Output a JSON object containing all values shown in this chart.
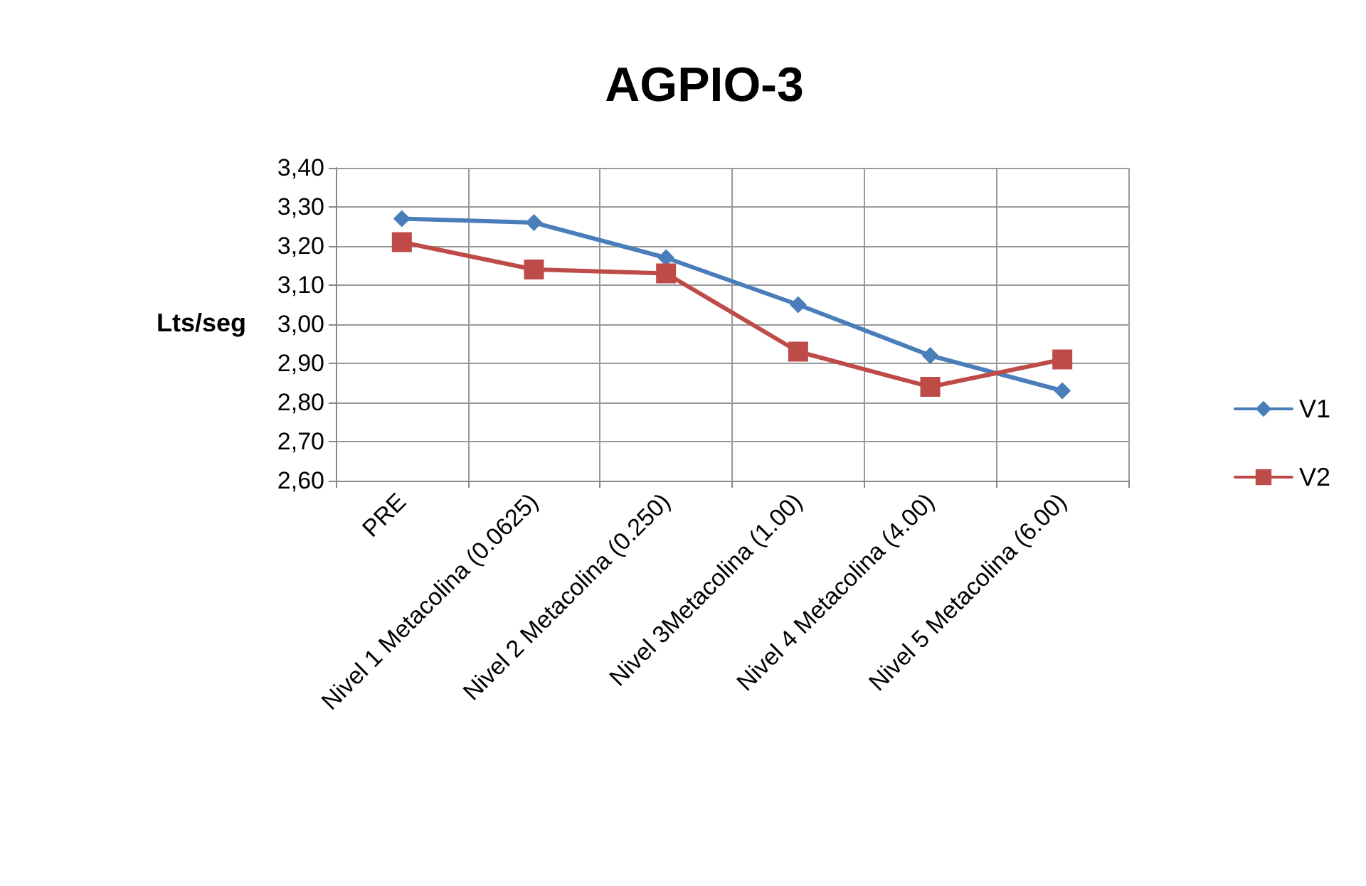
{
  "chart_data": {
    "type": "line",
    "title": "AGPIO-3",
    "ylabel": "Lts/seg",
    "categories": [
      "PRE",
      "Nivel 1 Metacolina (0.0625)",
      "Nivel 2 Metacolina (0.250)",
      "Nivel 3Metacolina (1.00)",
      "Nivel 4 Metacolina (4.00)",
      "Nivel 5 Metacolina (6.00)"
    ],
    "series": [
      {
        "name": "V1",
        "color": "#4a7ebb",
        "marker": "diamond",
        "values": [
          3.27,
          3.26,
          3.17,
          3.05,
          2.92,
          2.83
        ]
      },
      {
        "name": "V2",
        "color": "#be4b48",
        "marker": "square",
        "values": [
          3.21,
          3.14,
          3.13,
          2.93,
          2.84,
          2.91
        ]
      }
    ],
    "ylim": [
      2.6,
      3.4
    ],
    "yticks": [
      {
        "value": 2.6,
        "label": "2,60"
      },
      {
        "value": 2.7,
        "label": "2,70"
      },
      {
        "value": 2.8,
        "label": "2,80"
      },
      {
        "value": 2.9,
        "label": "2,90"
      },
      {
        "value": 3.0,
        "label": "3,00"
      },
      {
        "value": 3.1,
        "label": "3,10"
      },
      {
        "value": 3.2,
        "label": "3,20"
      },
      {
        "value": 3.3,
        "label": "3,30"
      },
      {
        "value": 3.4,
        "label": "3,40"
      }
    ],
    "grid": true,
    "legend": "right",
    "line_style": "solid"
  }
}
